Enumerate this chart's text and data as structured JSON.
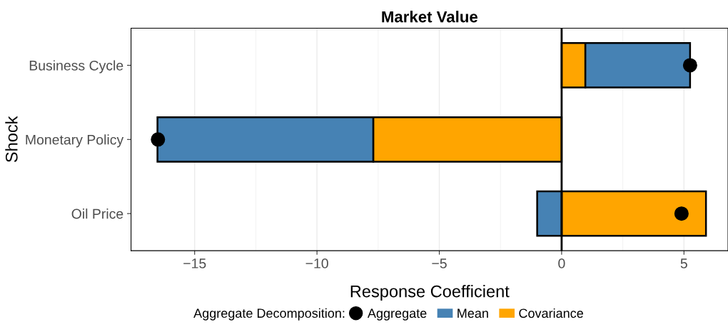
{
  "chart_data": {
    "type": "bar",
    "orientation": "horizontal",
    "stacked": true,
    "title": "Market Value",
    "xlabel": "Response Coefficient",
    "ylabel": "Shock",
    "legend_title": "Aggregate Decomposition:",
    "categories": [
      "Business Cycle",
      "Monetary Policy",
      "Oil Price"
    ],
    "series": [
      {
        "name": "Covariance",
        "color": "#ffa500",
        "values": [
          0.97,
          -7.7,
          5.9
        ]
      },
      {
        "name": "Mean",
        "color": "#4682b4",
        "values": [
          4.28,
          -8.82,
          -1.0
        ]
      },
      {
        "name": "Aggregate",
        "type": "scatter",
        "color": "#000000",
        "values": [
          5.25,
          -16.5,
          4.9
        ]
      }
    ],
    "xlim": [
      -17.6,
      6.8
    ],
    "xticks": [
      {
        "value": -15,
        "label": "−15"
      },
      {
        "value": -10,
        "label": "−10"
      },
      {
        "value": -5,
        "label": "−5"
      },
      0,
      5
    ],
    "ref_lines": [
      {
        "axis": "x",
        "value": 0,
        "color": "#000000"
      }
    ],
    "grid": "x",
    "legend": "bottom",
    "marker": "circle"
  }
}
